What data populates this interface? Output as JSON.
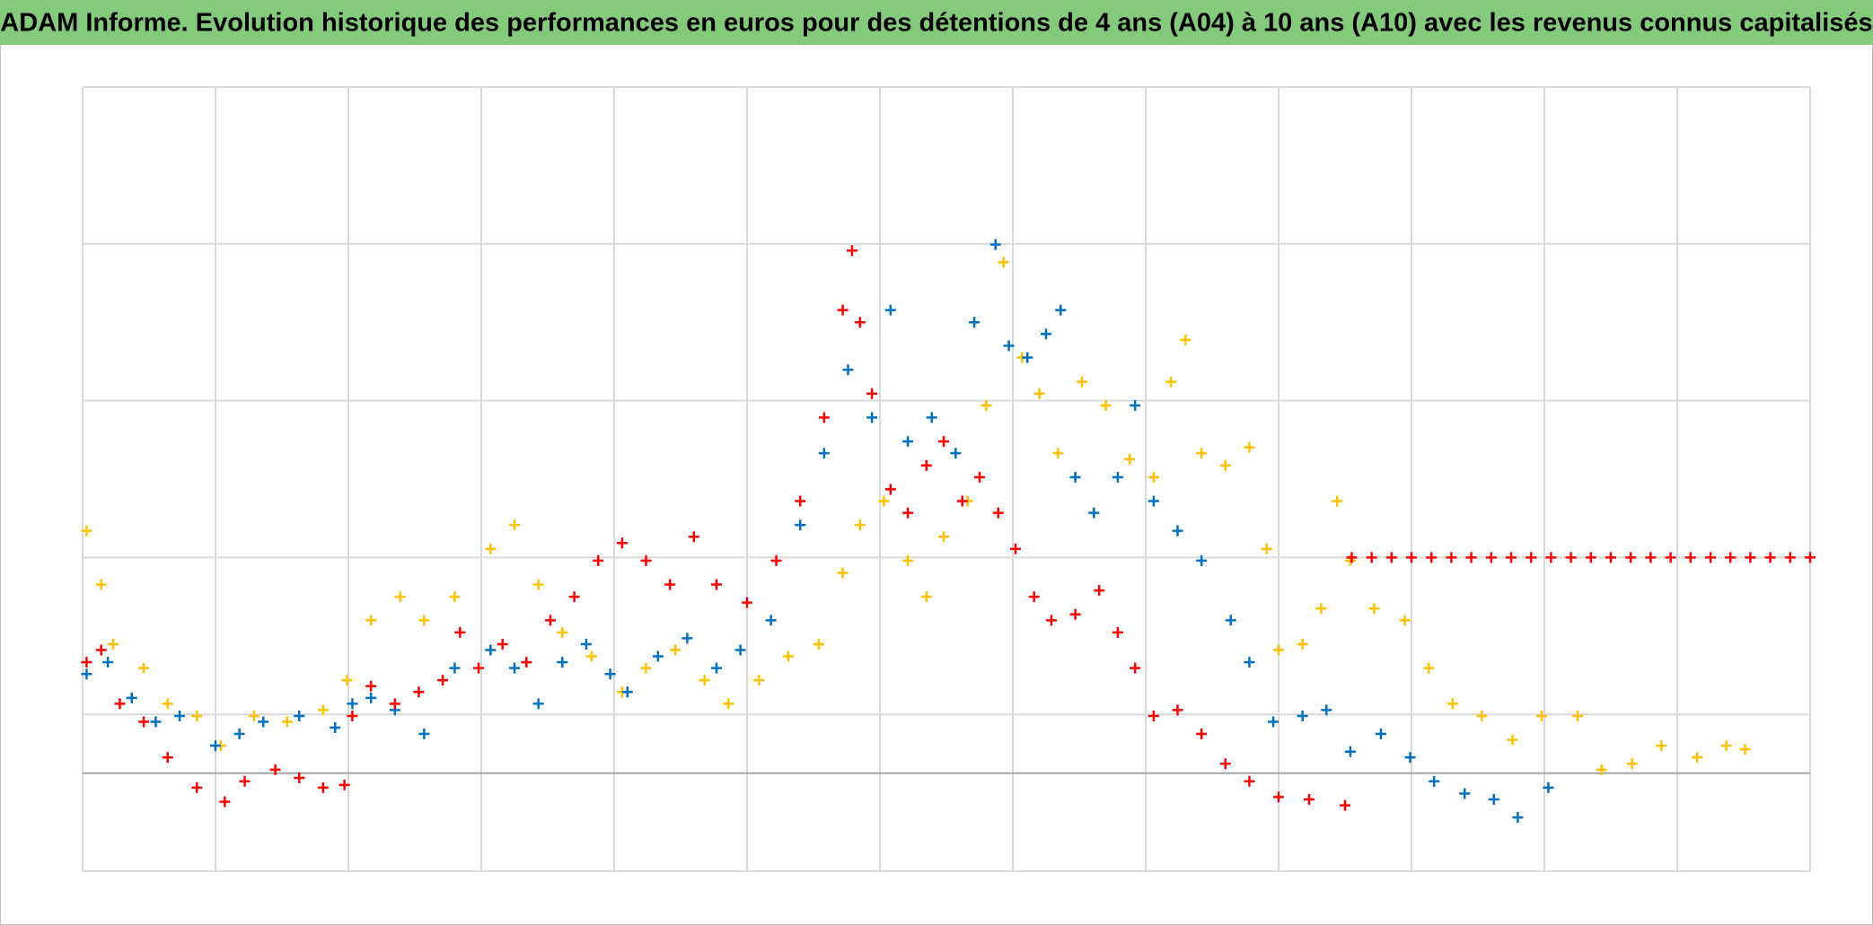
{
  "chart_data": {
    "type": "scatter",
    "title": "ADAM Informe. Evolution historique des performances en euros pour des détentions de 4 ans (A04) à 10 ans (A10) avec les revenus connus capitalisés",
    "xlim": [
      0,
      13
    ],
    "xticks": [
      0,
      1,
      2,
      3,
      4,
      5,
      6,
      7,
      8,
      9,
      10,
      11,
      12,
      13
    ],
    "ylim": [
      -25,
      175
    ],
    "yticks": [
      -25,
      15,
      55,
      95,
      135,
      175
    ],
    "grid": true,
    "series": [
      {
        "color": "#ffc000",
        "x": [
          0.03,
          0.14,
          0.23,
          0.46,
          0.64,
          0.86,
          1.04,
          1.29,
          1.54,
          1.81,
          1.99,
          2.17,
          2.39,
          2.57,
          2.8,
          3.07,
          3.25,
          3.43,
          3.61,
          3.83,
          4.06,
          4.24,
          4.46,
          4.68,
          4.86,
          5.09,
          5.31,
          5.54,
          5.72,
          5.85,
          6.03,
          6.21,
          6.35,
          6.48,
          6.66,
          6.8,
          6.93,
          7.07,
          7.2,
          7.34,
          7.52,
          7.7,
          7.88,
          8.06,
          8.19,
          8.3,
          8.42,
          8.6,
          8.78,
          8.91,
          9,
          9.18,
          9.32,
          9.44,
          9.54,
          9.72,
          9.95,
          10.13,
          10.31,
          10.53,
          10.76,
          10.98,
          11.25,
          11.43,
          11.66,
          11.88,
          12.15,
          12.37,
          12.51
        ],
        "values": [
          61.8,
          48.1,
          32.9,
          26.8,
          17.7,
          14.6,
          7,
          14.6,
          13.1,
          16.1,
          23.7,
          39,
          45,
          39,
          45,
          57.2,
          63.3,
          48.1,
          35.9,
          29.8,
          20.7,
          26.8,
          31.4,
          23.7,
          17.7,
          23.7,
          29.8,
          32.9,
          51.1,
          63.3,
          69.4,
          54.2,
          45,
          60.3,
          69.4,
          93.8,
          130.3,
          106,
          96.8,
          81.6,
          99.8,
          93.8,
          80.1,
          75.5,
          99.8,
          110.5,
          81.6,
          78.5,
          83.1,
          57.2,
          31.4,
          32.9,
          42,
          69.4,
          54.2,
          42,
          39,
          26.8,
          17.7,
          14.6,
          8.5,
          14.6,
          14.6,
          0.9,
          2.4,
          7,
          4,
          7,
          6.1
        ]
      },
      {
        "color": "#0070c0",
        "x": [
          0.03,
          0.19,
          0.37,
          0.55,
          0.73,
          1,
          1.18,
          1.36,
          1.63,
          1.9,
          2.03,
          2.17,
          2.35,
          2.57,
          2.8,
          3.07,
          3.25,
          3.43,
          3.61,
          3.79,
          3.97,
          4.1,
          4.33,
          4.55,
          4.77,
          4.95,
          5.18,
          5.4,
          5.58,
          5.76,
          5.94,
          6.08,
          6.21,
          6.39,
          6.57,
          6.71,
          6.87,
          6.97,
          7.11,
          7.25,
          7.36,
          7.47,
          7.61,
          7.79,
          7.92,
          8.06,
          8.24,
          8.42,
          8.64,
          8.78,
          8.96,
          9.18,
          9.36,
          9.54,
          9.77,
          9.99,
          10.17,
          10.4,
          10.62,
          10.8,
          11.03
        ],
        "values": [
          25.3,
          28.3,
          19.2,
          13.1,
          14.6,
          7,
          10,
          13.1,
          14.6,
          11.6,
          17.7,
          19.2,
          16.1,
          10,
          26.8,
          31.4,
          26.8,
          17.7,
          28.3,
          32.9,
          25.3,
          20.7,
          29.8,
          34.4,
          26.8,
          31.4,
          39,
          63.3,
          81.6,
          102.9,
          90.7,
          118.1,
          84.6,
          90.7,
          81.6,
          115,
          134.8,
          109,
          106,
          112,
          118.1,
          75.5,
          66.4,
          75.5,
          93.8,
          69.4,
          61.8,
          54.2,
          39,
          28.3,
          13.1,
          14.6,
          16.1,
          5.5,
          10,
          4,
          -2.1,
          -5.2,
          -6.7,
          -11.3,
          -3.7
        ]
      },
      {
        "color": "#ff0000",
        "x": [
          0.03,
          0.14,
          0.28,
          0.46,
          0.64,
          0.86,
          1.07,
          1.22,
          1.45,
          1.63,
          1.81,
          1.97,
          2.03,
          2.17,
          2.35,
          2.53,
          2.71,
          2.84,
          2.98,
          3.16,
          3.34,
          3.52,
          3.7,
          3.88,
          4.06,
          4.24,
          4.42,
          4.6,
          4.77,
          5,
          5.22,
          5.4,
          5.58,
          5.72,
          5.79,
          5.85,
          5.94,
          6.08,
          6.21,
          6.35,
          6.48,
          6.62,
          6.75,
          6.89,
          7.02,
          7.16,
          7.29,
          7.47,
          7.65,
          7.79,
          7.92,
          8.06,
          8.24,
          8.42,
          8.6,
          8.78,
          9,
          9.23,
          9.5,
          9.55,
          9.7,
          9.85,
          10,
          10.15,
          10.3,
          10.45,
          10.6,
          10.75,
          10.9,
          11.05,
          11.2,
          11.35,
          11.5,
          11.65,
          11.8,
          11.95,
          12.1,
          12.25,
          12.4,
          12.55,
          12.7,
          12.85,
          13
        ],
        "values": [
          28.3,
          31.4,
          17.7,
          13.1,
          4,
          -3.7,
          -7.3,
          -2.1,
          0.9,
          -1.2,
          -3.7,
          -3,
          14.6,
          22.2,
          17.7,
          20.7,
          23.7,
          35.9,
          26.8,
          32.9,
          28.3,
          39,
          45,
          54.2,
          58.7,
          54.2,
          48.1,
          60.3,
          48.1,
          43.5,
          54.2,
          69.4,
          90.7,
          118.1,
          133.3,
          115,
          96.8,
          72.4,
          66.4,
          78.5,
          84.6,
          69.4,
          75.5,
          66.4,
          57.2,
          45,
          39,
          40.5,
          46.6,
          35.9,
          26.8,
          14.6,
          16.1,
          10,
          2.4,
          -2.1,
          -6.1,
          -6.7,
          -8.2,
          55,
          55,
          55,
          55,
          55,
          55,
          55,
          55,
          55,
          55,
          55,
          55,
          55,
          55,
          55,
          55,
          55,
          55,
          55,
          55,
          55,
          55,
          55,
          55
        ]
      }
    ]
  }
}
